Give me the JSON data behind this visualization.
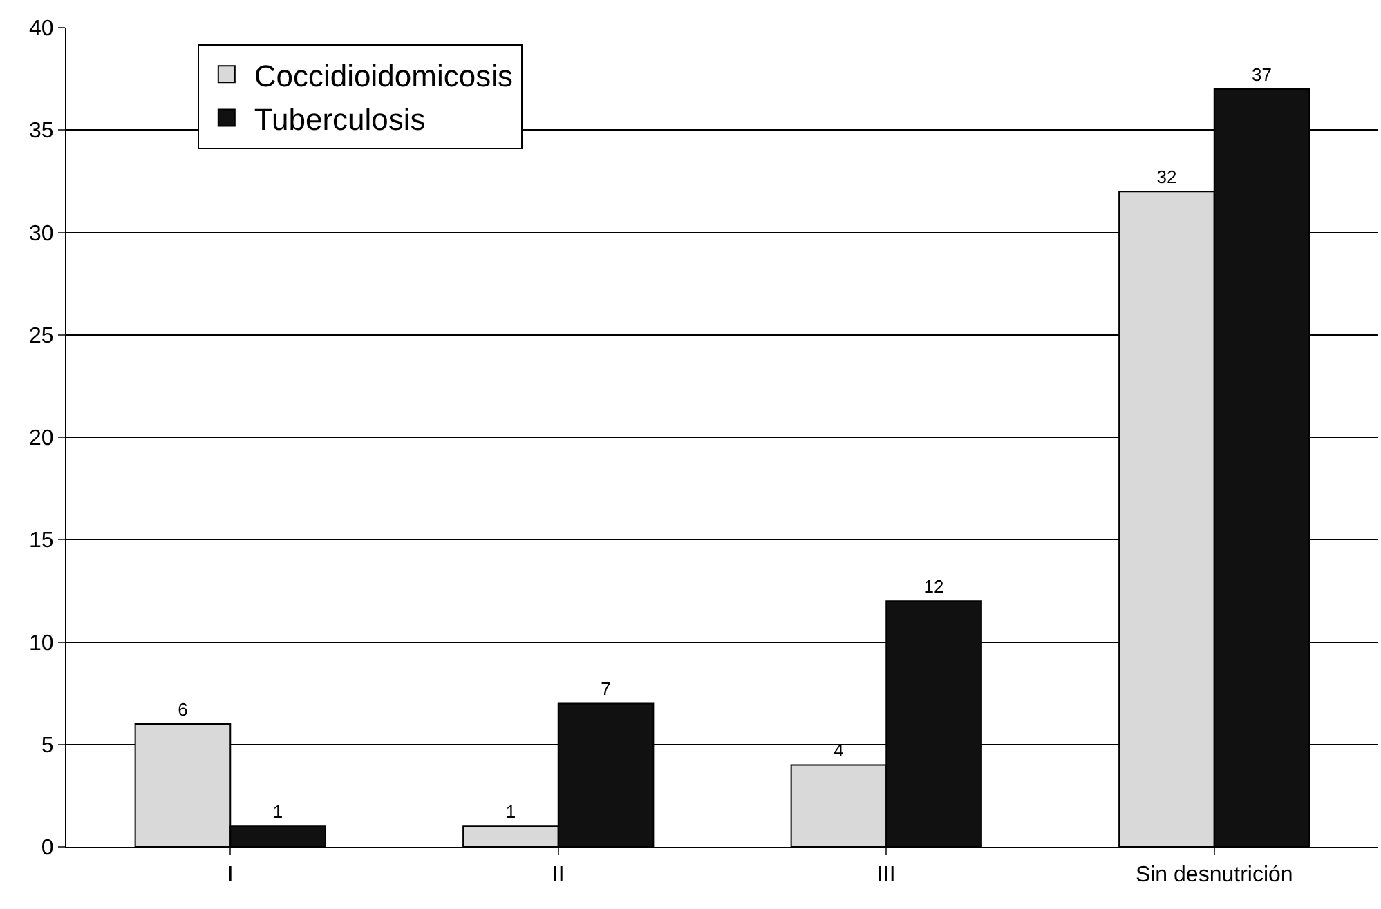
{
  "chart_data": {
    "type": "bar",
    "categories": [
      "I",
      "II",
      "III",
      "Sin desnutrición"
    ],
    "series": [
      {
        "name": "Coccidioidomicosis",
        "color": "#d9d9d9",
        "values": [
          6,
          1,
          4,
          32
        ]
      },
      {
        "name": "Tuberculosis",
        "color": "#111111",
        "values": [
          1,
          7,
          12,
          37
        ]
      }
    ],
    "ylim": [
      0,
      40
    ],
    "yticks": [
      0,
      5,
      10,
      15,
      20,
      25,
      30,
      35,
      40
    ],
    "grid": "y",
    "legend": "top left",
    "data_labels": true
  }
}
